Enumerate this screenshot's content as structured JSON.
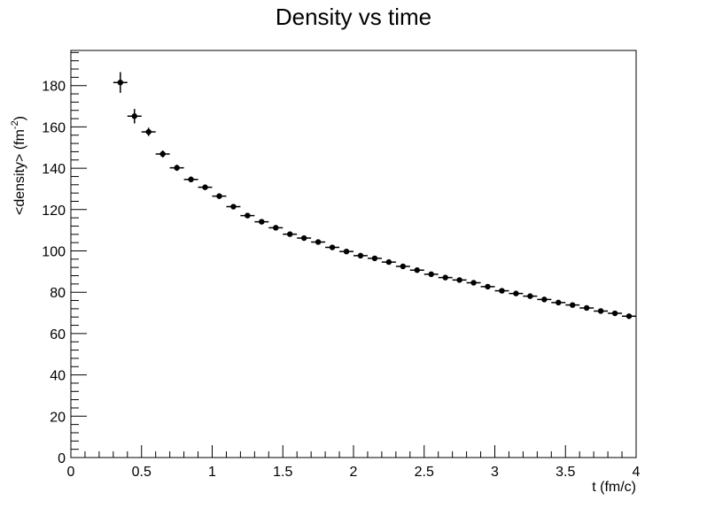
{
  "chart_data": {
    "type": "scatter",
    "title": "Density vs time",
    "xlabel": "t (fm/c)",
    "ylabel_main": "<density> (fm",
    "ylabel_sup": "-2",
    "ylabel_close": ")",
    "xlim": [
      0,
      4
    ],
    "ylim": [
      0,
      197
    ],
    "x_ticks": [
      0,
      0.5,
      1,
      1.5,
      2,
      2.5,
      3,
      3.5,
      4
    ],
    "x_tick_labels": [
      "0",
      "0.5",
      "1",
      "1.5",
      "2",
      "2.5",
      "3",
      "3.5",
      "4"
    ],
    "y_ticks": [
      0,
      20,
      40,
      60,
      80,
      100,
      120,
      140,
      160,
      180
    ],
    "y_tick_labels": [
      "0",
      "20",
      "40",
      "60",
      "80",
      "100",
      "120",
      "140",
      "160",
      "180"
    ],
    "grid": false,
    "marker_color": "#000000",
    "series": [
      {
        "x": [
          0.35,
          0.45,
          0.55,
          0.65,
          0.75,
          0.85,
          0.95,
          1.05,
          1.15,
          1.25,
          1.35,
          1.45,
          1.55,
          1.65,
          1.75,
          1.85,
          1.95,
          2.05,
          2.15,
          2.25,
          2.35,
          2.45,
          2.55,
          2.65,
          2.75,
          2.85,
          2.95,
          3.05,
          3.15,
          3.25,
          3.35,
          3.45,
          3.55,
          3.65,
          3.75,
          3.85,
          3.95
        ],
        "y": [
          181.5,
          165.2,
          157.6,
          146.9,
          140.2,
          134.6,
          130.8,
          126.5,
          121.4,
          117.1,
          114.1,
          111.2,
          108.1,
          106.2,
          104.3,
          101.7,
          99.7,
          97.7,
          96.4,
          94.6,
          92.5,
          90.7,
          88.7,
          87.1,
          85.9,
          84.6,
          82.7,
          80.7,
          79.4,
          78.1,
          76.5,
          75.0,
          73.8,
          72.4,
          70.9,
          69.8,
          68.4
        ],
        "x_err": [
          0.05,
          0.05,
          0.05,
          0.05,
          0.05,
          0.05,
          0.05,
          0.05,
          0.05,
          0.05,
          0.05,
          0.05,
          0.05,
          0.05,
          0.05,
          0.05,
          0.05,
          0.05,
          0.05,
          0.05,
          0.05,
          0.05,
          0.05,
          0.05,
          0.05,
          0.05,
          0.05,
          0.05,
          0.05,
          0.05,
          0.05,
          0.05,
          0.05,
          0.05,
          0.05,
          0.05,
          0.05
        ],
        "y_err": [
          5.0,
          3.5,
          2.0,
          1.7,
          1.5,
          1.4,
          1.3,
          1.2,
          1.2,
          1.1,
          1.1,
          1.0,
          1.0,
          1.0,
          1.0,
          1.0,
          1.0,
          1.0,
          1.0,
          1.0,
          1.0,
          1.0,
          1.0,
          1.0,
          1.0,
          1.0,
          1.0,
          1.0,
          1.0,
          1.0,
          1.0,
          1.0,
          1.0,
          1.0,
          1.0,
          1.0,
          1.0
        ]
      }
    ]
  }
}
